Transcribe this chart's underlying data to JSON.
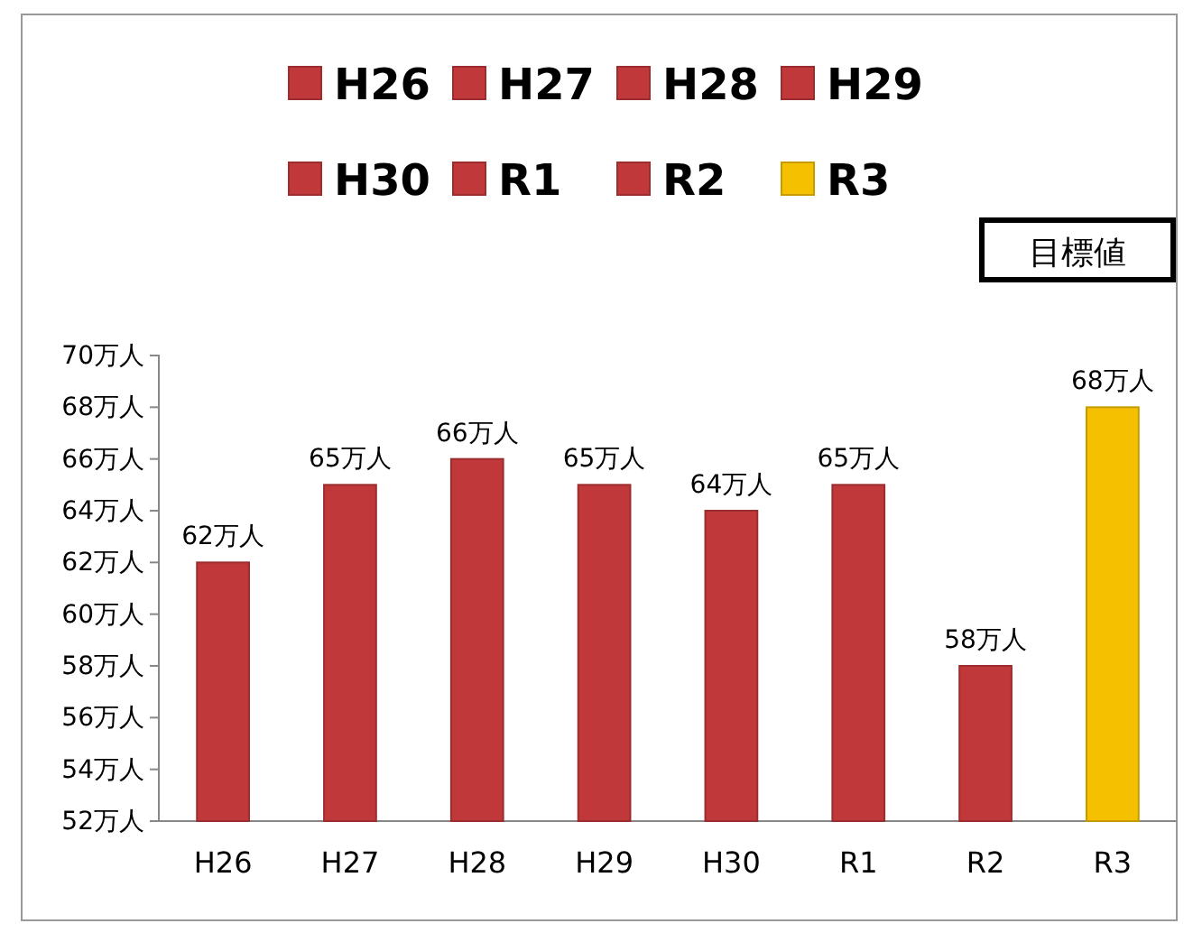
{
  "chart_data": {
    "type": "bar",
    "stacked": true,
    "categories": [
      "H26",
      "H27",
      "H28",
      "H29",
      "H30",
      "R1",
      "R2",
      "R3"
    ],
    "series": [
      {
        "name": "H26",
        "color": "#c0383a",
        "values": [
          62,
          null,
          null,
          null,
          null,
          null,
          null,
          null
        ],
        "value_labels": [
          "62万人",
          null,
          null,
          null,
          null,
          null,
          null,
          null
        ]
      },
      {
        "name": "H27",
        "color": "#c0383a",
        "values": [
          null,
          65,
          null,
          null,
          null,
          null,
          null,
          null
        ],
        "value_labels": [
          null,
          "65万人",
          null,
          null,
          null,
          null,
          null,
          null
        ]
      },
      {
        "name": "H28",
        "color": "#c0383a",
        "values": [
          null,
          null,
          66,
          null,
          null,
          null,
          null,
          null
        ],
        "value_labels": [
          null,
          null,
          "66万人",
          null,
          null,
          null,
          null,
          null
        ]
      },
      {
        "name": "H29",
        "color": "#c0383a",
        "values": [
          null,
          null,
          null,
          65,
          null,
          null,
          null,
          null
        ],
        "value_labels": [
          null,
          null,
          null,
          "65万人",
          null,
          null,
          null,
          null
        ]
      },
      {
        "name": "H30",
        "color": "#c0383a",
        "values": [
          null,
          null,
          null,
          null,
          64,
          null,
          null,
          null
        ],
        "value_labels": [
          null,
          null,
          null,
          null,
          "64万人",
          null,
          null,
          null
        ]
      },
      {
        "name": "R1",
        "color": "#c0383a",
        "values": [
          null,
          null,
          null,
          null,
          null,
          65,
          null,
          null
        ],
        "value_labels": [
          null,
          null,
          null,
          null,
          null,
          "65万人",
          null,
          null
        ]
      },
      {
        "name": "R2",
        "color": "#c0383a",
        "values": [
          null,
          null,
          null,
          null,
          null,
          null,
          58,
          null
        ],
        "value_labels": [
          null,
          null,
          null,
          null,
          null,
          null,
          "58万人",
          null
        ]
      },
      {
        "name": "R3",
        "color": "#f5c000",
        "values": [
          null,
          null,
          null,
          null,
          null,
          null,
          null,
          68
        ],
        "value_labels": [
          null,
          null,
          null,
          null,
          null,
          null,
          null,
          "68万人"
        ]
      }
    ],
    "ylim": [
      52,
      70
    ],
    "yticks": [
      {
        "value": 52,
        "label": "52万人"
      },
      {
        "value": 54,
        "label": "54万人"
      },
      {
        "value": 56,
        "label": "56万人"
      },
      {
        "value": 58,
        "label": "58万人"
      },
      {
        "value": 60,
        "label": "60万人"
      },
      {
        "value": 62,
        "label": "62万人"
      },
      {
        "value": 64,
        "label": "64万人"
      },
      {
        "value": 66,
        "label": "66万人"
      },
      {
        "value": 68,
        "label": "68万人"
      },
      {
        "value": 70,
        "label": "70万人"
      }
    ],
    "annotations": [
      "目標値"
    ],
    "legend": "top",
    "grid": false
  }
}
